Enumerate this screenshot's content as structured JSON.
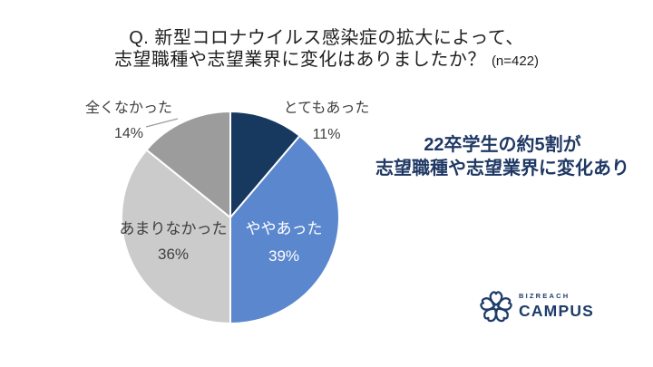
{
  "title": {
    "line1": "Q. 新型コロナウイルス感染症の拡大によって、",
    "line2": "志望職種や志望業界に変化はありましたか？",
    "sample_size": "(n=422)"
  },
  "chart_data": {
    "type": "pie",
    "title": "新型コロナウイルス感染症の拡大によって、志望職種や志望業界に変化はありましたか？",
    "sample_size": 422,
    "start_angle_deg": 0,
    "direction": "clockwise",
    "legend": "none",
    "slices": [
      {
        "label": "とてもあった",
        "value": 11,
        "pct_label": "11%",
        "color": "#17395F",
        "label_position": "outside-right",
        "label_color": "#404040"
      },
      {
        "label": "ややあった",
        "value": 39,
        "pct_label": "39%",
        "color": "#5B87CE",
        "label_position": "inside",
        "label_color": "#FFFFFF"
      },
      {
        "label": "あまりなかった",
        "value": 36,
        "pct_label": "36%",
        "color": "#CBCBCB",
        "label_position": "inside",
        "label_color": "#404040"
      },
      {
        "label": "全くなかった",
        "value": 14,
        "pct_label": "14%",
        "color": "#9C9C9C",
        "label_position": "outside-left",
        "label_color": "#404040"
      }
    ]
  },
  "headline": {
    "line1": "22卒学生の約5割が",
    "line2": "志望職種や志望業界に変化あり",
    "color": "#1F3864"
  },
  "logo": {
    "brand_top": "BIZREACH",
    "brand_bottom": "CAMPUS",
    "icon": "sakura-flower-icon",
    "color": "#1E3C69"
  }
}
